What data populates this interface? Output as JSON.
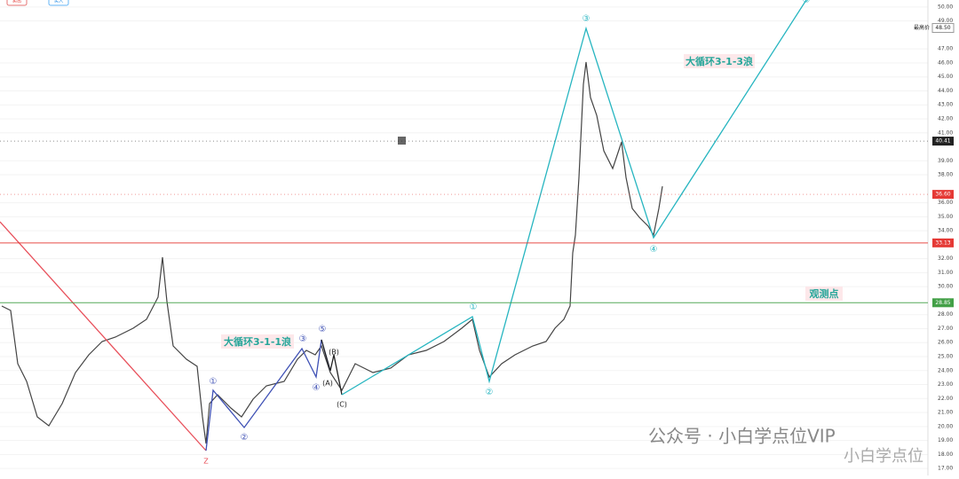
{
  "chart_data": {
    "type": "candlestick",
    "buttons": [
      "卖出",
      "买入"
    ],
    "ylim": [
      16.5,
      50.5
    ],
    "yticks": [
      {
        "value": 17,
        "label": "17.00"
      },
      {
        "value": 18,
        "label": "18.00"
      },
      {
        "value": 19,
        "label": "19.00"
      },
      {
        "value": 20,
        "label": "20.00"
      },
      {
        "value": 21,
        "label": "21.00"
      },
      {
        "value": 22,
        "label": "22.00"
      },
      {
        "value": 23,
        "label": "23.00"
      },
      {
        "value": 24,
        "label": "24.00"
      },
      {
        "value": 25,
        "label": "25.00"
      },
      {
        "value": 26,
        "label": "26.00"
      },
      {
        "value": 27,
        "label": "27.00"
      },
      {
        "value": 28,
        "label": "28.00"
      },
      {
        "value": 30,
        "label": "30.00"
      },
      {
        "value": 31,
        "label": "31.00"
      },
      {
        "value": 32,
        "label": "32.00"
      },
      {
        "value": 34,
        "label": "34.00"
      },
      {
        "value": 35,
        "label": "35.00"
      },
      {
        "value": 36,
        "label": "36.00"
      },
      {
        "value": 38,
        "label": "38.00"
      },
      {
        "value": 39,
        "label": "39.00"
      },
      {
        "value": 41,
        "label": "41.00"
      },
      {
        "value": 42,
        "label": "42.00"
      },
      {
        "value": 43,
        "label": "43.00"
      },
      {
        "value": 44,
        "label": "44.00"
      },
      {
        "value": 45,
        "label": "45.00"
      },
      {
        "value": 46,
        "label": "46.00"
      },
      {
        "value": 47,
        "label": "47.00"
      },
      {
        "value": 49,
        "label": "49.00"
      },
      {
        "value": 50,
        "label": "50.00"
      }
    ],
    "levels": [
      {
        "value": 48.5,
        "label": "48.50",
        "color": "#ffffff",
        "text": "最高价"
      },
      {
        "value": 40.41,
        "label": "40.41",
        "color": "#222222"
      },
      {
        "value": 36.6,
        "label": "36.60",
        "color": "#e53935"
      },
      {
        "value": 33.13,
        "label": "33.13",
        "color": "#e53935"
      },
      {
        "value": 28.85,
        "label": "28.85",
        "color": "#43a047"
      }
    ],
    "annotations": {
      "cycle_small": "大循环3-1-1浪",
      "cycle_big": "大循环3-1-3浪",
      "watch": "观测点"
    },
    "wave_labels": [
      "①",
      "②",
      "③",
      "④",
      "⑤",
      "(A)",
      "(B)",
      "(C)",
      "Z"
    ],
    "watermark": "公众号 · 小白学点位VIP",
    "watermark2": "小白学点位"
  }
}
